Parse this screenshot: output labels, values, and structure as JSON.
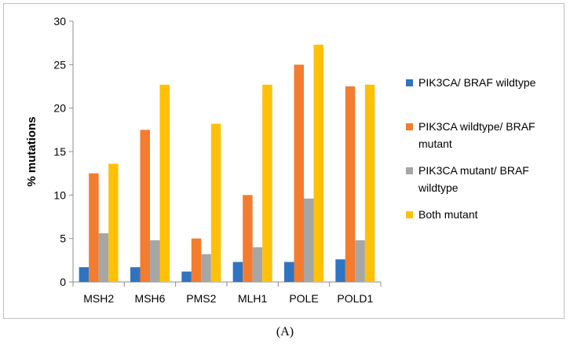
{
  "chart_data": {
    "type": "bar",
    "title": "",
    "xlabel": "",
    "ylabel": "% mutations",
    "ylim": [
      0,
      30
    ],
    "yticks": [
      0,
      5,
      10,
      15,
      20,
      25,
      30
    ],
    "categories": [
      "MSH2",
      "MSH6",
      "PMS2",
      "MLH1",
      "POLE",
      "POLD1"
    ],
    "series": [
      {
        "name": "PIK3CA/ BRAF wildtype",
        "legend_lines": [
          "PIK3CA/ BRAF wildtype"
        ],
        "color": "#2f74c0",
        "values": [
          1.7,
          1.7,
          1.2,
          2.3,
          2.3,
          2.6
        ]
      },
      {
        "name": "PIK3CA wildtype/ BRAF mutant",
        "legend_lines": [
          "PIK3CA wildtype/ BRAF",
          "mutant"
        ],
        "color": "#f47c2f",
        "values": [
          12.5,
          17.5,
          5.0,
          10.0,
          25.0,
          22.5
        ]
      },
      {
        "name": "PIK3CA mutant/ BRAF wildtype",
        "legend_lines": [
          "PIK3CA mutant/ BRAF",
          "wildtype"
        ],
        "color": "#a6a6a6",
        "values": [
          5.6,
          4.8,
          3.2,
          4.0,
          9.6,
          4.8
        ]
      },
      {
        "name": "Both mutant",
        "legend_lines": [
          "Both mutant"
        ],
        "color": "#fec108",
        "values": [
          13.6,
          22.7,
          18.2,
          22.7,
          27.3,
          22.7
        ]
      }
    ],
    "legend_position": "right",
    "grid": false
  },
  "caption": "(A)"
}
